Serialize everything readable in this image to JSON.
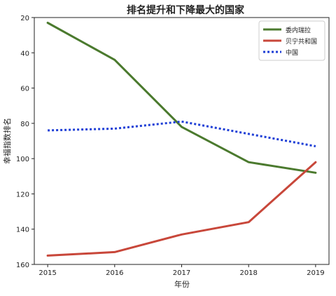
{
  "chart_data": {
    "type": "line",
    "title": "排名提升和下降最大的国家",
    "xlabel": "年份",
    "ylabel": "幸福指数排名",
    "x": [
      2015,
      2016,
      2017,
      2018,
      2019
    ],
    "x_ticks": [
      "2015",
      "2016",
      "2017",
      "2018",
      "2019"
    ],
    "y_ticks": [
      "20",
      "40",
      "60",
      "80",
      "100",
      "120",
      "140",
      "160"
    ],
    "y_tick_values": [
      20,
      40,
      60,
      80,
      100,
      120,
      140,
      160
    ],
    "ylim": [
      20,
      160
    ],
    "y_inverted": true,
    "grid": false,
    "legend_position": "top-right",
    "series": [
      {
        "name": "委内瑞拉",
        "values": [
          23,
          44,
          82,
          102,
          108
        ],
        "color": "#4b7a2e",
        "style": "solid"
      },
      {
        "name": "贝宁共和国",
        "values": [
          155,
          153,
          143,
          136,
          102
        ],
        "color": "#c8473a",
        "style": "solid"
      },
      {
        "name": "中国",
        "values": [
          84,
          83,
          79,
          86,
          93
        ],
        "color": "#1f3fd6",
        "style": "dotted"
      }
    ]
  }
}
